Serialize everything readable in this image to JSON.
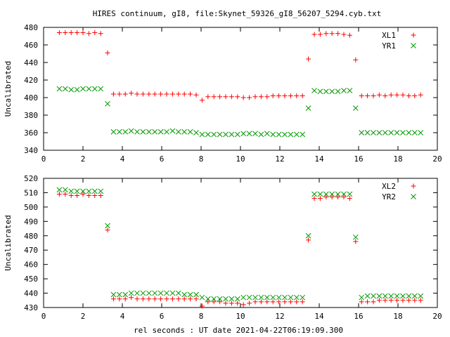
{
  "title": "HIRES continuum, gI8, file:Skynet_59326_gI8_56207_5294.cyb.txt",
  "xlabel": "rel seconds : UT date 2021-04-22T06:19:09.300",
  "colors": {
    "xl": "#ff0000",
    "yr": "#009900"
  },
  "chart_data": [
    {
      "type": "scatter",
      "ylabel": "Uncalibrated",
      "xlim": [
        0,
        20
      ],
      "ylim": [
        340,
        480
      ],
      "xticks": [
        0,
        2,
        4,
        6,
        8,
        10,
        12,
        14,
        16,
        18,
        20
      ],
      "yticks": [
        340,
        360,
        380,
        400,
        420,
        440,
        460,
        480
      ],
      "x": [
        0.8,
        1.1,
        1.4,
        1.7,
        2.0,
        2.3,
        2.6,
        2.9,
        3.25,
        3.55,
        3.85,
        4.15,
        4.45,
        4.75,
        5.05,
        5.35,
        5.65,
        5.95,
        6.25,
        6.55,
        6.85,
        7.15,
        7.45,
        7.75,
        8.05,
        8.35,
        8.65,
        8.95,
        9.25,
        9.55,
        9.85,
        10.15,
        10.45,
        10.75,
        11.05,
        11.35,
        11.65,
        11.95,
        12.25,
        12.55,
        12.85,
        13.15,
        13.45,
        13.75,
        14.05,
        14.35,
        14.65,
        14.95,
        15.25,
        15.55,
        15.85,
        16.15,
        16.45,
        16.75,
        17.05,
        17.35,
        17.65,
        17.95,
        18.25,
        18.55,
        18.85,
        19.15
      ],
      "series": [
        {
          "name": "XL1",
          "marker": "plus",
          "values": [
            474,
            474,
            474,
            474,
            474,
            473,
            474,
            473,
            451,
            404,
            404,
            404,
            405,
            404,
            404,
            404,
            404,
            404,
            404,
            404,
            404,
            404,
            404,
            403,
            397,
            401,
            401,
            401,
            401,
            401,
            401,
            400,
            400,
            401,
            401,
            401,
            402,
            402,
            402,
            402,
            402,
            402,
            444,
            472,
            472,
            473,
            473,
            473,
            472,
            471,
            443,
            402,
            402,
            402,
            403,
            402,
            403,
            403,
            403,
            402,
            402,
            403
          ]
        },
        {
          "name": "YR1",
          "marker": "cross",
          "values": [
            410,
            410,
            409,
            409,
            410,
            410,
            410,
            410,
            393,
            361,
            361,
            361,
            362,
            361,
            361,
            361,
            361,
            361,
            361,
            362,
            361,
            361,
            361,
            360,
            358,
            358,
            358,
            358,
            358,
            358,
            358,
            359,
            359,
            359,
            358,
            359,
            358,
            358,
            358,
            358,
            358,
            358,
            388,
            408,
            407,
            407,
            407,
            407,
            408,
            408,
            388,
            360,
            360,
            360,
            360,
            360,
            360,
            360,
            360,
            360,
            360,
            360
          ]
        }
      ],
      "legend_position": "top-right"
    },
    {
      "type": "scatter",
      "ylabel": "Uncalibrated",
      "xlim": [
        0,
        20
      ],
      "ylim": [
        430,
        520
      ],
      "xticks": [
        0,
        2,
        4,
        6,
        8,
        10,
        12,
        14,
        16,
        18,
        20
      ],
      "yticks": [
        430,
        440,
        450,
        460,
        470,
        480,
        490,
        500,
        510,
        520
      ],
      "x": [
        0.8,
        1.1,
        1.4,
        1.7,
        2.0,
        2.3,
        2.6,
        2.9,
        3.25,
        3.55,
        3.85,
        4.15,
        4.45,
        4.75,
        5.05,
        5.35,
        5.65,
        5.95,
        6.25,
        6.55,
        6.85,
        7.15,
        7.45,
        7.75,
        8.05,
        8.35,
        8.65,
        8.95,
        9.25,
        9.55,
        9.85,
        10.15,
        10.45,
        10.75,
        11.05,
        11.35,
        11.65,
        11.95,
        12.25,
        12.55,
        12.85,
        13.15,
        13.45,
        13.75,
        14.05,
        14.35,
        14.65,
        14.95,
        15.25,
        15.55,
        15.85,
        16.15,
        16.45,
        16.75,
        17.05,
        17.35,
        17.65,
        17.95,
        18.25,
        18.55,
        18.85,
        19.15
      ],
      "series": [
        {
          "name": "XL2",
          "marker": "plus",
          "values": [
            509,
            509,
            508,
            508,
            509,
            508,
            508,
            508,
            484,
            436,
            436,
            436,
            437,
            436,
            436,
            436,
            436,
            436,
            436,
            436,
            436,
            436,
            436,
            436,
            431,
            434,
            434,
            434,
            433,
            433,
            433,
            432,
            433,
            434,
            434,
            434,
            434,
            434,
            434,
            434,
            434,
            434,
            477,
            506,
            506,
            507,
            507,
            507,
            507,
            506,
            476,
            434,
            434,
            434,
            435,
            435,
            435,
            435,
            435,
            435,
            435,
            435
          ]
        },
        {
          "name": "YR2",
          "marker": "cross",
          "values": [
            512,
            512,
            511,
            511,
            511,
            511,
            511,
            511,
            487,
            439,
            439,
            439,
            440,
            440,
            440,
            440,
            440,
            440,
            440,
            440,
            440,
            439,
            439,
            439,
            437,
            436,
            436,
            436,
            436,
            436,
            436,
            437,
            437,
            437,
            437,
            437,
            437,
            437,
            437,
            437,
            437,
            437,
            480,
            509,
            509,
            509,
            509,
            509,
            509,
            509,
            479,
            437,
            438,
            438,
            438,
            438,
            438,
            438,
            438,
            438,
            438,
            438
          ]
        }
      ],
      "legend_position": "top-right"
    }
  ]
}
